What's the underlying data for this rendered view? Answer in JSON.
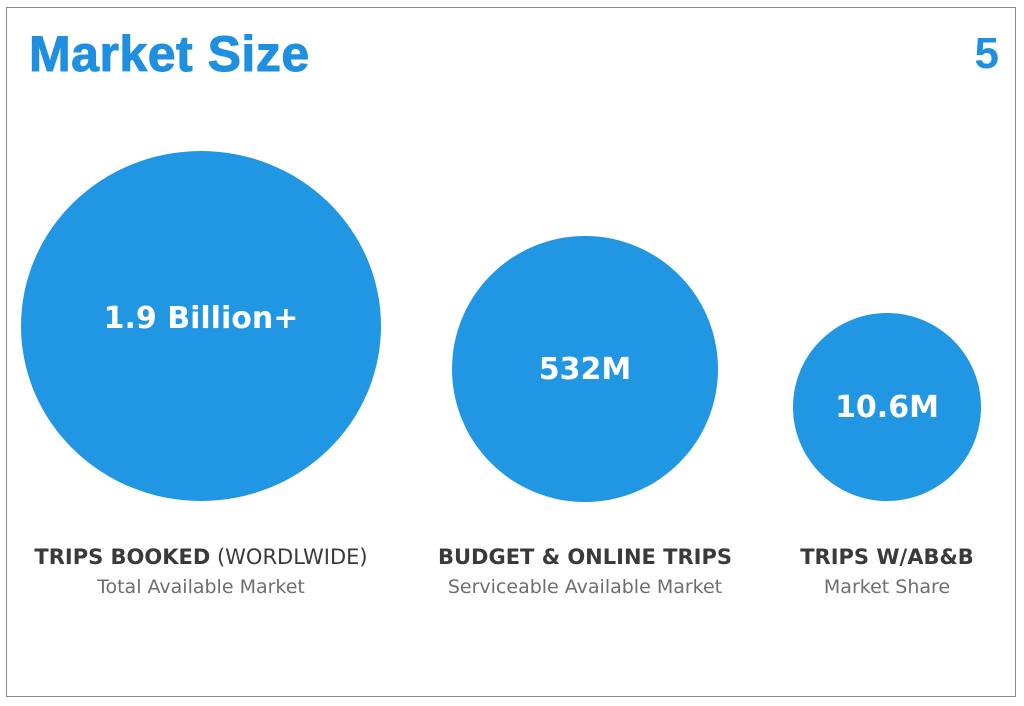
{
  "slide": {
    "title": "Market Size",
    "page_number": "5",
    "accent_color": "#1f8fe0",
    "circle_color": "#2196e3"
  },
  "markets": [
    {
      "value": "1.9 Billion+",
      "heading_bold": "TRIPS BOOKED",
      "heading_light": " (WORDLWIDE)",
      "subtitle": "Total Available Market"
    },
    {
      "value": "532M",
      "heading_bold": "BUDGET & ONLINE TRIPS",
      "heading_light": "",
      "subtitle": "Serviceable Available Market"
    },
    {
      "value": "10.6M",
      "heading_bold": "TRIPS W/AB&B",
      "heading_light": "",
      "subtitle": "Market Share"
    }
  ]
}
